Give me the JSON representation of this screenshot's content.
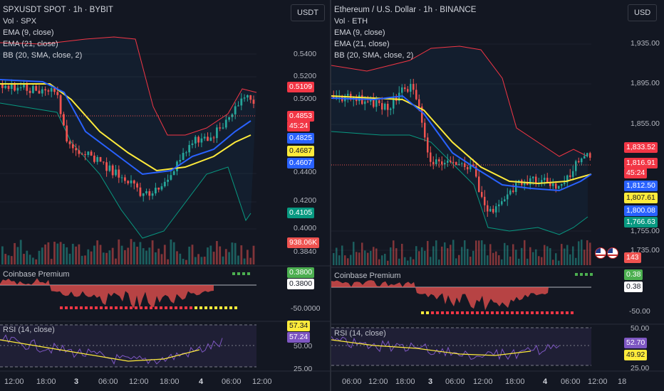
{
  "left": {
    "title": "SPXUSDT SPOT · 1h · BYBIT",
    "legend": [
      "Vol · SPX",
      "EMA (9, close)",
      "EMA (21, close)",
      "BB (20, SMA, close, 2)"
    ],
    "currency": "USDT",
    "price_ticks": [
      "0.5400",
      "0.5200",
      "0.5000",
      "0.4400",
      "0.4200",
      "0.4000",
      "0.3840"
    ],
    "tags": {
      "bb_upper": "0.5109",
      "last_price": "0.4853",
      "countdown": "45:24",
      "ema9": "0.4825",
      "bb_mid": "0.4687",
      "ema21": "0.4607",
      "bb_lower": "0.4105",
      "volume": "938.06K",
      "premium_top": "0.3800",
      "premium_val": "0.3800",
      "premium_tick": "-50.0000",
      "rsi_val": "57.34",
      "rsi_ma": "57.24",
      "rsi_tick_50": "50.00",
      "rsi_tick_25": "25.00"
    },
    "premium_title": "Coinbase Premium",
    "rsi_title": "RSI (14, close)",
    "time_labels": [
      "12:00",
      "18:00",
      "3",
      "06:00",
      "12:00",
      "18:00",
      "4",
      "06:00",
      "12:00"
    ]
  },
  "right": {
    "title": "Ethereum / U.S. Dollar · 1h · BINANCE",
    "legend": [
      "Vol · ETH",
      "EMA (9, close)",
      "EMA (21, close)",
      "BB (20, SMA, close, 2)"
    ],
    "currency": "USD",
    "price_ticks": [
      "1,935.00",
      "1,895.00",
      "1,855.00",
      "1,755.00",
      "1,735.00"
    ],
    "tags": {
      "bb_upper": "1,833.52",
      "last_price": "1,816.91",
      "countdown": "45:24",
      "ema9": "1,812.50",
      "bb_mid": "1,807.61",
      "ema21": "1,800.08",
      "bb_lower": "1,766.63",
      "volume": "143",
      "premium_top": "0.38",
      "premium_val": "0.38",
      "premium_tick": "-50.00",
      "rsi_val": "52.70",
      "rsi_ma": "49.92",
      "rsi_tick_50": "50.00",
      "rsi_tick_25": "25.00"
    },
    "premium_title": "Coinbase Premium",
    "rsi_title": "RSI (14, close)",
    "time_labels": [
      "06:00",
      "12:00",
      "18:00",
      "3",
      "06:00",
      "12:00",
      "18:00",
      "4",
      "06:00",
      "12:00",
      "18"
    ]
  },
  "colors": {
    "up": "#26a69a",
    "down": "#ef5350",
    "ema9": "#2962ff",
    "ema21": "#ffeb3b",
    "bb_upper": "#f23645",
    "bb_lower": "#089981",
    "rsi": "#7e57c2",
    "background": "#131722"
  }
}
